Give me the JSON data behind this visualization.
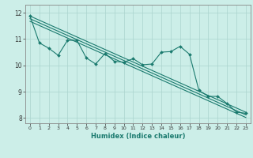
{
  "xlabel": "Humidex (Indice chaleur)",
  "background_color": "#cceee8",
  "grid_color": "#aad4ce",
  "line_color": "#1a7a6e",
  "xlim": [
    -0.5,
    23.5
  ],
  "ylim": [
    7.8,
    12.3
  ],
  "yticks": [
    8,
    9,
    10,
    11,
    12
  ],
  "xticks": [
    0,
    1,
    2,
    3,
    4,
    5,
    6,
    7,
    8,
    9,
    10,
    11,
    12,
    13,
    14,
    15,
    16,
    17,
    18,
    19,
    20,
    21,
    22,
    23
  ],
  "y_main": [
    11.87,
    10.85,
    10.65,
    10.38,
    10.95,
    10.95,
    10.28,
    10.05,
    10.45,
    10.15,
    10.12,
    10.25,
    10.02,
    10.05,
    10.5,
    10.52,
    10.72,
    10.42,
    9.05,
    8.82,
    8.82,
    8.55,
    8.22,
    8.18
  ],
  "trend_lines": [
    [
      [
        0,
        11.87
      ],
      [
        23,
        8.22
      ]
    ],
    [
      [
        0,
        11.77
      ],
      [
        23,
        8.12
      ]
    ],
    [
      [
        0,
        11.67
      ],
      [
        23,
        8.02
      ]
    ]
  ]
}
